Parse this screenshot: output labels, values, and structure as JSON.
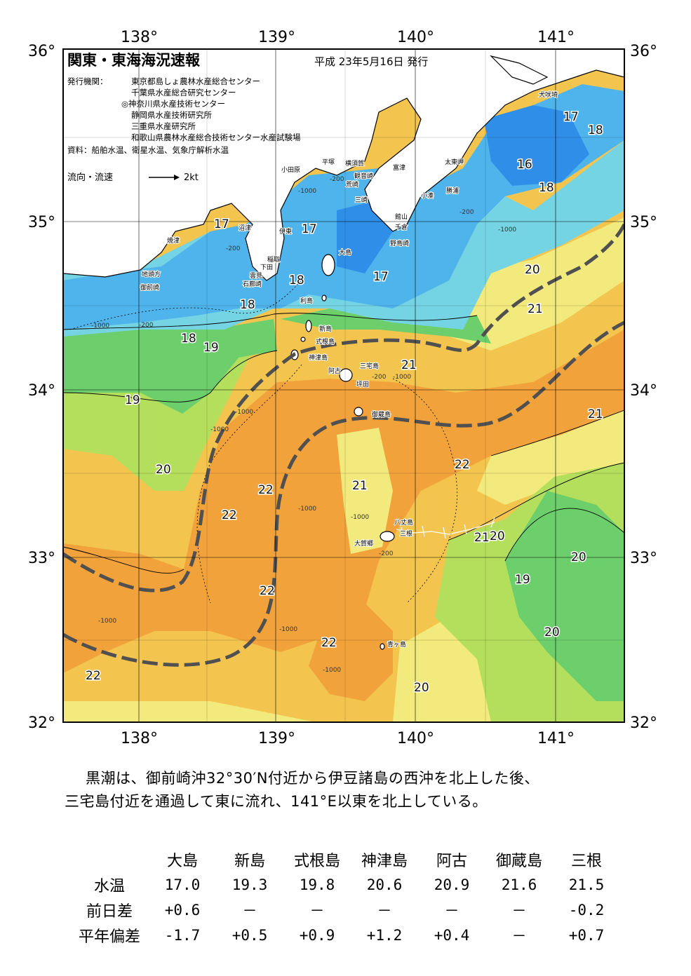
{
  "title": "関東・東海海況速報",
  "issue_date": "平成 23年5月16日 発行",
  "issuers_label": "発行機関：",
  "issuers": [
    "東京都島しょ農林水産総合センター",
    "千葉県水産総合研究センター",
    "◎神奈川県水産技術センター",
    "静岡県水産技術研究所",
    "三重県水産研究所",
    "和歌山県農林水産総合技術センター水産試験場"
  ],
  "sources": "資料：船舶水温、衛星水温、気象庁解析水温",
  "legend": {
    "current_label": "流向・流速",
    "speed_label": "2kt"
  },
  "axes": {
    "lon_labels": [
      "138°",
      "139°",
      "140°",
      "141°"
    ],
    "lat_labels": [
      "36°",
      "35°",
      "34°",
      "33°",
      "32°"
    ]
  },
  "colors": {
    "t16": "#2f8fe8",
    "t17": "#4fb4ec",
    "t18": "#75d4e4",
    "t19": "#6ccf6c",
    "t20": "#b3df5c",
    "t21": "#f2ea7c",
    "t22": "#f3c54e",
    "t23": "#f2a23a",
    "kuroshio": "#505050",
    "land": "#ffffff"
  },
  "sst_labels": [
    "17",
    "18",
    "16",
    "18",
    "17",
    "17",
    "20",
    "21",
    "18",
    "18",
    "17",
    "18",
    "19",
    "19",
    "21",
    "21",
    "20",
    "22",
    "22",
    "21",
    "22",
    "22",
    "21",
    "20",
    "20",
    "19",
    "20",
    "22",
    "22",
    "20"
  ],
  "place_names": [
    "犬吠埼",
    "太東岬",
    "勝浦",
    "小湊",
    "館山",
    "千倉",
    "野島崎",
    "富津",
    "観音崎",
    "三崎",
    "横須賀",
    "平塚",
    "小田原",
    "荒崎",
    "大島",
    "伊東",
    "稲取",
    "下田",
    "石廊崎",
    "雲見",
    "沼津",
    "焼津",
    "御前崎",
    "地頭方",
    "利島",
    "新島",
    "式根島",
    "神津島",
    "阿古",
    "三宅島",
    "坪田",
    "御蔵島",
    "八丈島",
    "三根",
    "大賀郷",
    "青ヶ島"
  ],
  "depth_labels": [
    "-1000",
    "-200",
    "-200",
    "-1000",
    "-200",
    "-1000",
    "-200",
    "-1000",
    "-200",
    "-1000",
    "-1000",
    "-1000",
    "-1000",
    "-1000",
    "-1000",
    "-200",
    "-1000"
  ],
  "summary": [
    "黒潮は、御前崎沖32°30′N付近から伊豆諸島の西沖を北上した後、",
    "三宅島付近を通過して東に流れ、141°E以東を北上している。"
  ],
  "table": {
    "columns": [
      "大島",
      "新島",
      "式根島",
      "神津島",
      "阿古",
      "御蔵島",
      "三根"
    ],
    "rows": [
      {
        "label": "水温",
        "values": [
          "17.0",
          "19.3",
          "19.8",
          "20.6",
          "20.9",
          "21.6",
          "21.5"
        ]
      },
      {
        "label": "前日差",
        "values": [
          "+0.6",
          "－",
          "－",
          "－",
          "－",
          "－",
          "-0.2"
        ]
      },
      {
        "label": "平年偏差",
        "values": [
          "-1.7",
          "+0.5",
          "+0.9",
          "+1.2",
          "+0.4",
          "－",
          "+0.7"
        ]
      }
    ]
  }
}
